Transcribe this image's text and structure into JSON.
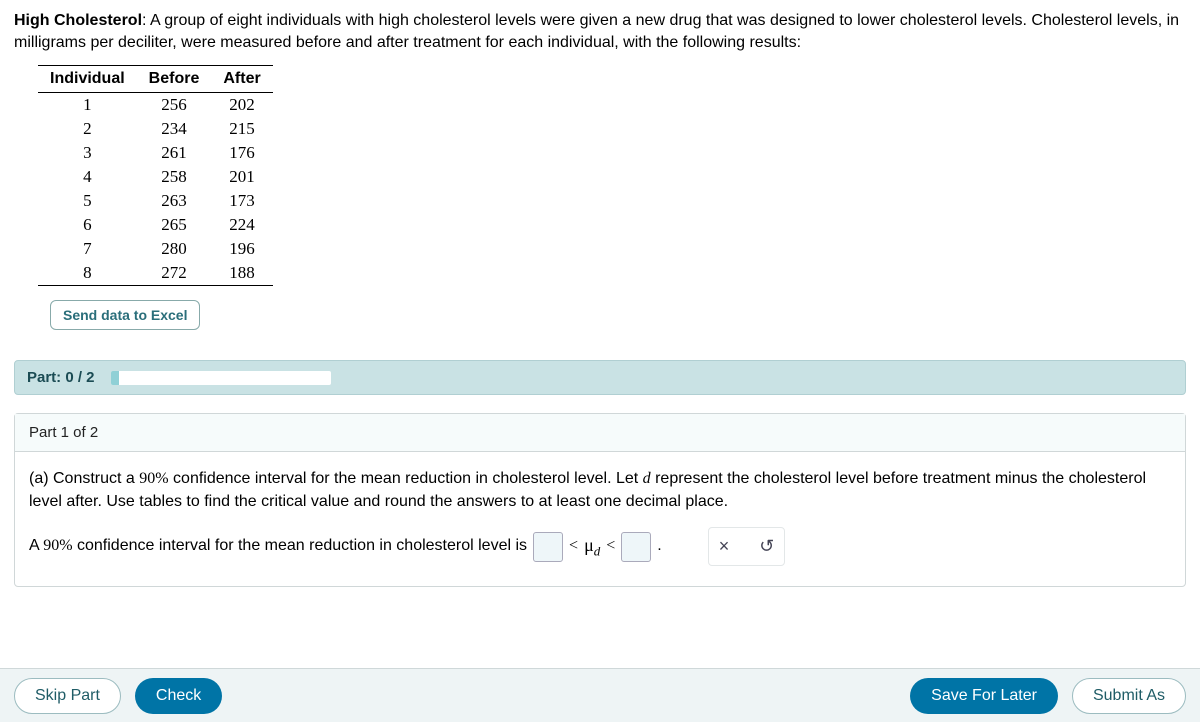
{
  "problem": {
    "title_bold": "High Cholesterol",
    "title_rest": ": A group of eight individuals with high cholesterol levels were given a new drug that was designed to lower cholesterol levels. Cholesterol levels, in milligrams per deciliter, were measured before and after treatment for each individual, with the following results:"
  },
  "table": {
    "columns": [
      "Individual",
      "Before",
      "After"
    ],
    "rows": [
      [
        "1",
        "256",
        "202"
      ],
      [
        "2",
        "234",
        "215"
      ],
      [
        "3",
        "261",
        "176"
      ],
      [
        "4",
        "258",
        "201"
      ],
      [
        "5",
        "263",
        "173"
      ],
      [
        "6",
        "265",
        "224"
      ],
      [
        "7",
        "280",
        "196"
      ],
      [
        "8",
        "272",
        "188"
      ]
    ]
  },
  "buttons": {
    "send_excel": "Send data to Excel",
    "skip_part": "Skip Part",
    "check": "Check",
    "save_later": "Save For Later",
    "submit": "Submit As"
  },
  "progress": {
    "label": "Part: 0 / 2",
    "percent": 4
  },
  "part1": {
    "header": "Part 1 of 2",
    "q_prefix": "(a) Construct a ",
    "q_pct": "90%",
    "q_mid1": " confidence interval for the mean reduction in cholesterol level. Let ",
    "q_var": "d",
    "q_mid2": " represent the cholesterol level before treatment minus the cholesterol level after. Use tables to find the critical value and round the answers to at least one decimal place.",
    "ci_prefix": "A ",
    "ci_pct": "90%",
    "ci_rest": " confidence interval for the mean reduction in cholesterol level is",
    "lt1": "<",
    "mu": "μ",
    "sub_d": "d",
    "lt2": "<",
    "period": "."
  },
  "icons": {
    "clear": "×",
    "reset": "↺"
  },
  "colors": {
    "accent_blue": "#0074a6",
    "panel_teal": "#c9e2e4",
    "link_teal": "#2a6e7a"
  }
}
